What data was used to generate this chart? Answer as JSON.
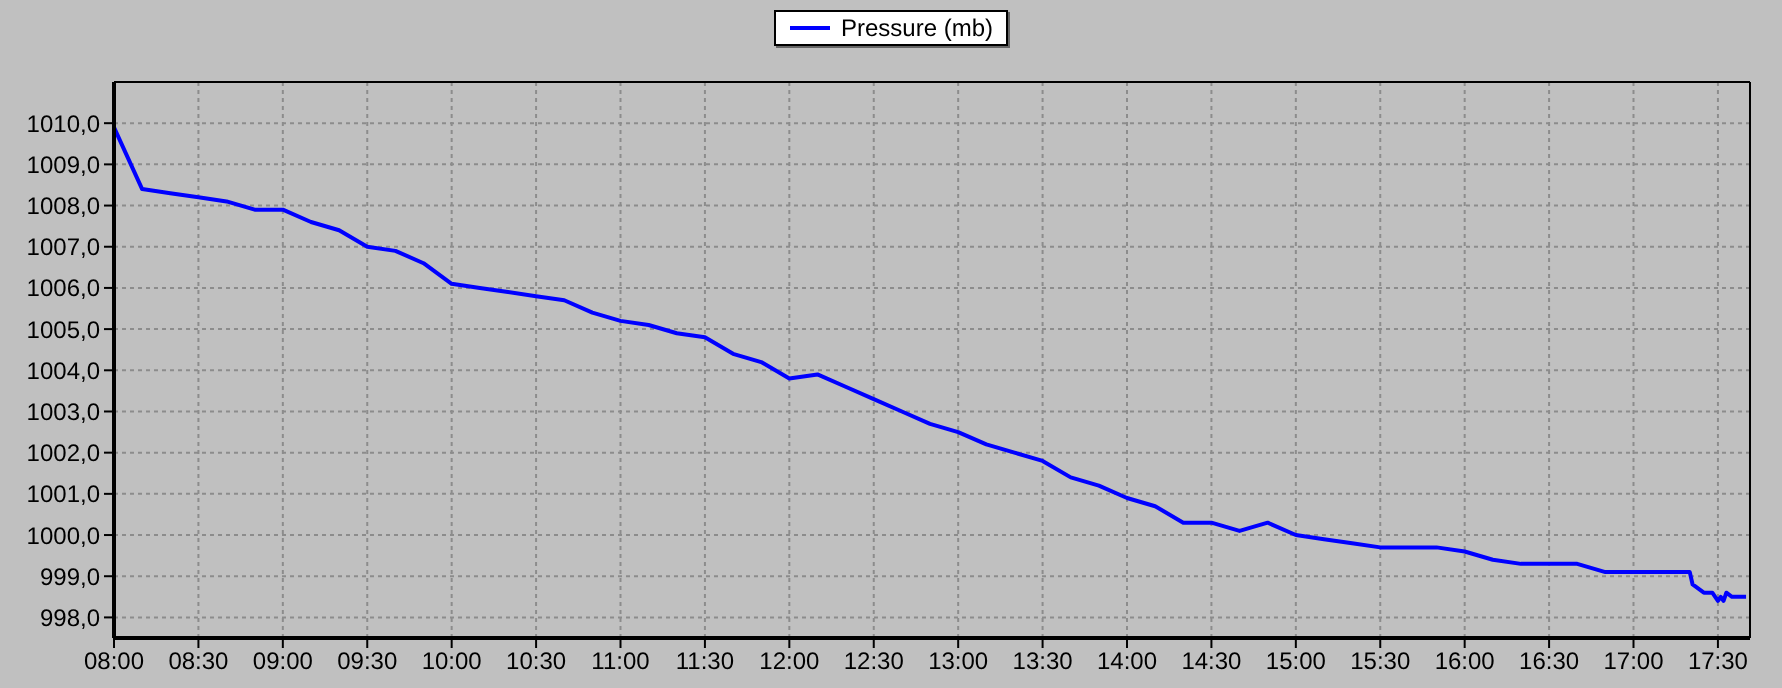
{
  "chart_data": {
    "type": "line",
    "x": [
      8,
      8.1667,
      8.3333,
      8.5,
      8.6667,
      8.8333,
      9,
      9.1667,
      9.3333,
      9.5,
      9.6667,
      9.8333,
      10,
      10.1667,
      10.3333,
      10.5,
      10.6667,
      10.8333,
      11,
      11.1667,
      11.3333,
      11.5,
      11.6667,
      11.8333,
      12,
      12.1667,
      12.3333,
      12.5,
      12.6667,
      12.8333,
      13,
      13.1667,
      13.3333,
      13.5,
      13.6667,
      13.8333,
      14,
      14.1667,
      14.3333,
      14.5,
      14.6667,
      14.8333,
      15,
      15.1667,
      15.3333,
      15.5,
      15.6667,
      15.8333,
      16,
      16.1667,
      16.3333,
      16.5,
      16.6667,
      16.8333,
      17,
      17.1667,
      17.3333,
      17.35,
      17.4167,
      17.4667,
      17.5,
      17.5167,
      17.5333,
      17.55,
      17.5833,
      17.6667
    ],
    "series": [
      {
        "name": "Pressure (mb)",
        "color": "#0000ff",
        "values": [
          1009.9,
          1008.4,
          1008.3,
          1008.2,
          1008.1,
          1007.9,
          1007.9,
          1007.6,
          1007.4,
          1007.0,
          1006.9,
          1006.6,
          1006.1,
          1006.0,
          1005.9,
          1005.8,
          1005.7,
          1005.4,
          1005.2,
          1005.1,
          1004.9,
          1004.8,
          1004.4,
          1004.2,
          1003.8,
          1003.9,
          1003.6,
          1003.3,
          1003.0,
          1002.7,
          1002.5,
          1002.2,
          1002.0,
          1001.8,
          1001.4,
          1001.2,
          1000.9,
          1000.7,
          1000.3,
          1000.3,
          1000.1,
          1000.3,
          1000.0,
          999.9,
          999.8,
          999.7,
          999.7,
          999.7,
          999.6,
          999.4,
          999.3,
          999.3,
          999.3,
          999.1,
          999.1,
          999.1,
          999.1,
          998.8,
          998.6,
          998.6,
          998.4,
          998.5,
          998.4,
          998.6,
          998.5,
          998.5
        ]
      }
    ],
    "xlim": [
      8,
      17.69
    ],
    "xticks": [
      {
        "value": 8,
        "label": "08:00"
      },
      {
        "value": 8.5,
        "label": "08:30"
      },
      {
        "value": 9,
        "label": "09:00"
      },
      {
        "value": 9.5,
        "label": "09:30"
      },
      {
        "value": 10,
        "label": "10:00"
      },
      {
        "value": 10.5,
        "label": "10:30"
      },
      {
        "value": 11,
        "label": "11:00"
      },
      {
        "value": 11.5,
        "label": "11:30"
      },
      {
        "value": 12,
        "label": "12:00"
      },
      {
        "value": 12.5,
        "label": "12:30"
      },
      {
        "value": 13,
        "label": "13:00"
      },
      {
        "value": 13.5,
        "label": "13:30"
      },
      {
        "value": 14,
        "label": "14:00"
      },
      {
        "value": 14.5,
        "label": "14:30"
      },
      {
        "value": 15,
        "label": "15:00"
      },
      {
        "value": 15.5,
        "label": "15:30"
      },
      {
        "value": 16,
        "label": "16:00"
      },
      {
        "value": 16.5,
        "label": "16:30"
      },
      {
        "value": 17,
        "label": "17:00"
      },
      {
        "value": 17.5,
        "label": "17:30"
      }
    ],
    "ylim": [
      997.5,
      1011.0
    ],
    "yticks": [
      {
        "value": 998,
        "label": "998,0"
      },
      {
        "value": 999,
        "label": "999,0"
      },
      {
        "value": 1000,
        "label": "1000,0"
      },
      {
        "value": 1001,
        "label": "1001,0"
      },
      {
        "value": 1002,
        "label": "1002,0"
      },
      {
        "value": 1003,
        "label": "1003,0"
      },
      {
        "value": 1004,
        "label": "1004,0"
      },
      {
        "value": 1005,
        "label": "1005,0"
      },
      {
        "value": 1006,
        "label": "1006,0"
      },
      {
        "value": 1007,
        "label": "1007,0"
      },
      {
        "value": 1008,
        "label": "1008,0"
      },
      {
        "value": 1009,
        "label": "1009,0"
      },
      {
        "value": 1010,
        "label": "1010,0"
      }
    ],
    "grid": true,
    "legend": "top",
    "marker": "none",
    "line_style": "solid"
  }
}
